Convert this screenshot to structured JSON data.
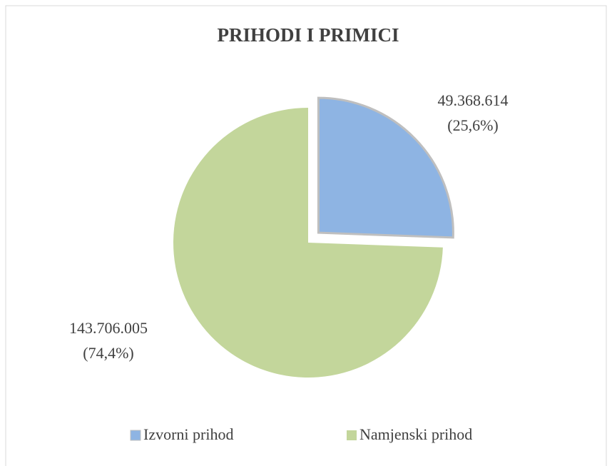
{
  "chart_data": {
    "type": "pie",
    "title": "PRIHODI I PRIMICI",
    "categories": [
      "Izvorni prihod",
      "Namjenski prihod"
    ],
    "values": [
      49368614,
      143706005
    ],
    "value_labels": [
      "49.368.614",
      "143.706.005"
    ],
    "percents": [
      25.6,
      74.4
    ],
    "percent_labels": [
      "(25,6%)",
      "(74,4%)"
    ],
    "colors": [
      "#8eb4e3",
      "#c3d69b"
    ],
    "exploded": [
      true,
      false
    ],
    "legend": "bottom"
  }
}
